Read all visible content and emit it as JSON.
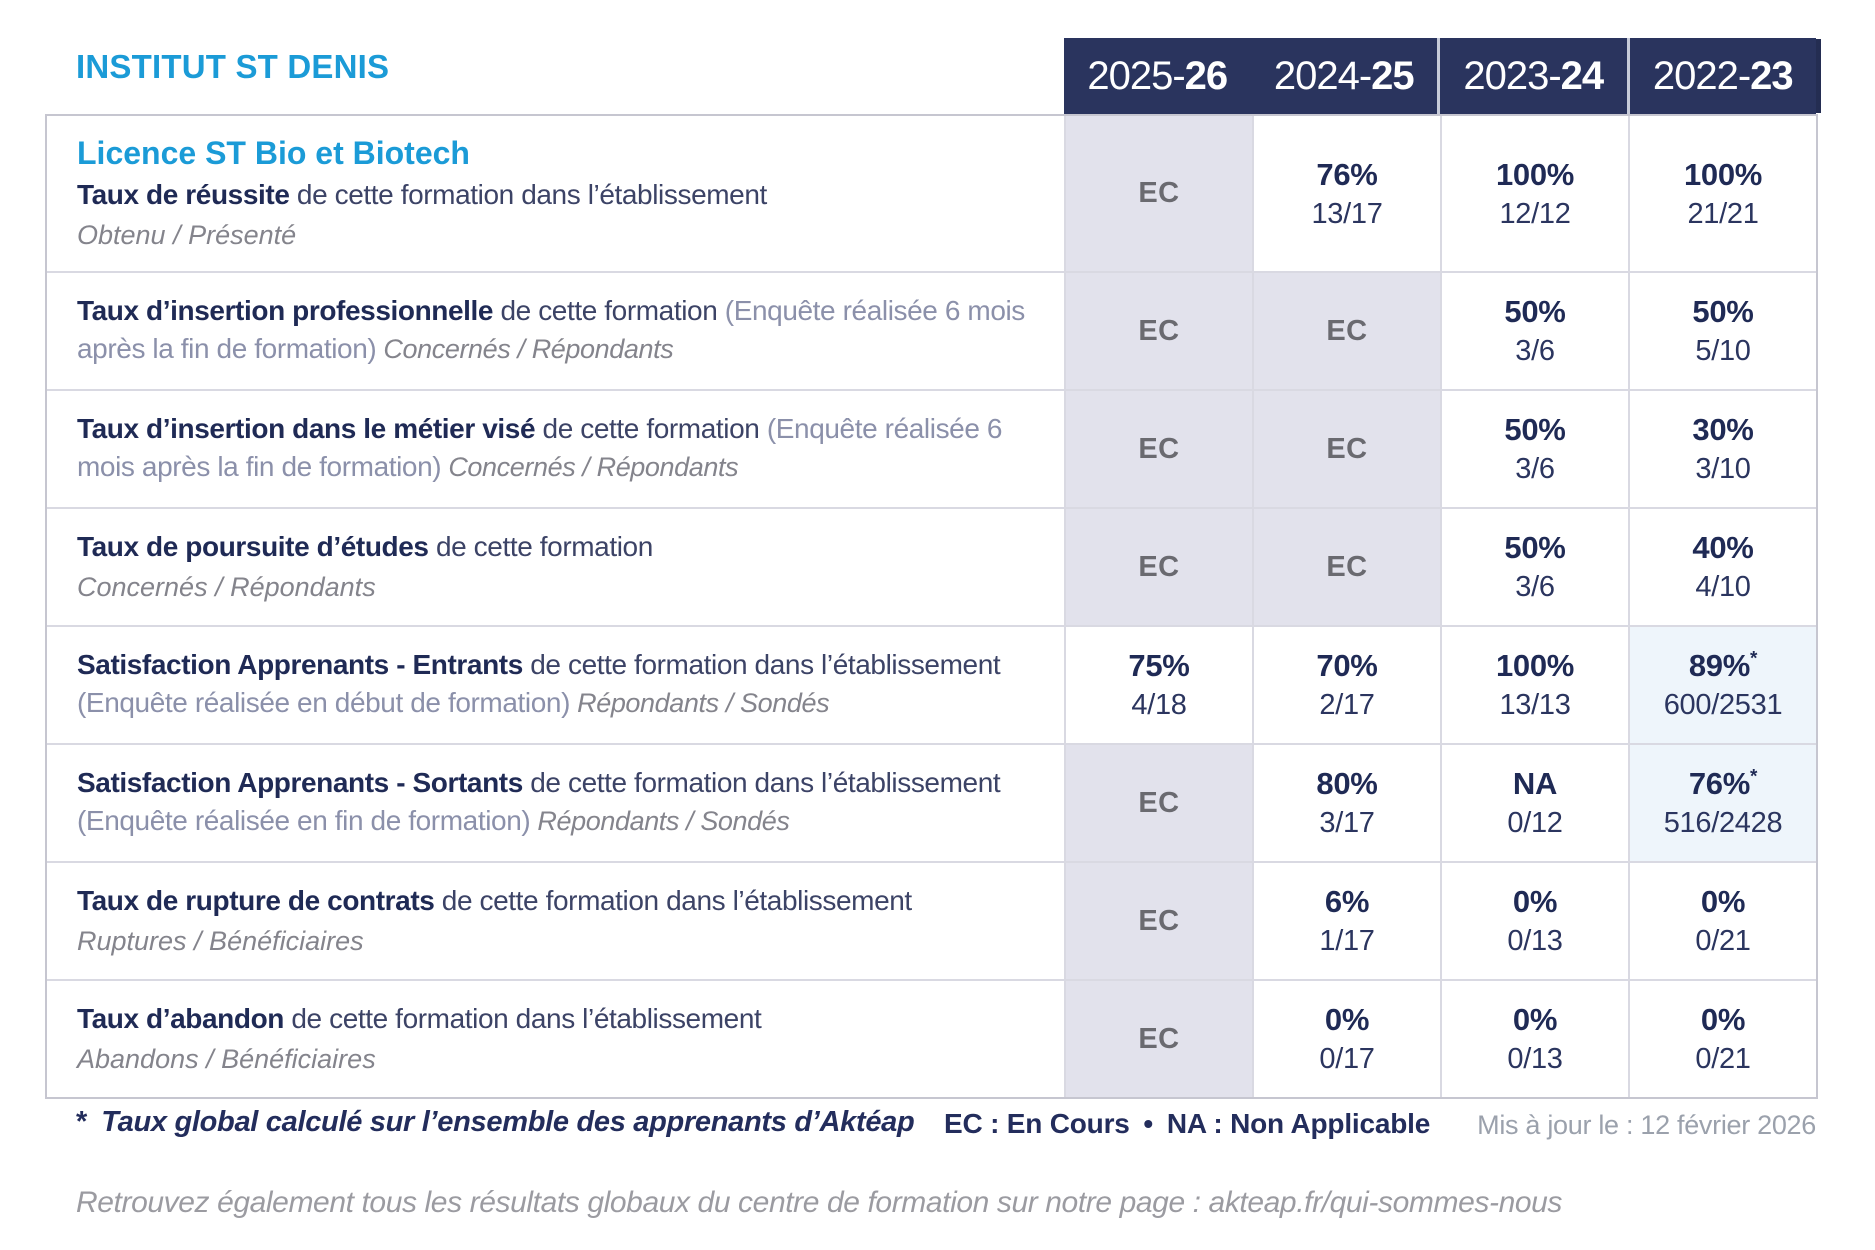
{
  "brand": "INSTITUT ST DENIS",
  "colors": {
    "accent_blue": "#1b9bd7",
    "navy_text": "#1f2a55",
    "header_bg": "#2a345e",
    "ec_cell_bg": "#e2e2ec",
    "star_cell_bg": "#eef5fb"
  },
  "year_columns": [
    {
      "prefix": "2025-",
      "bold": "26"
    },
    {
      "prefix": "2024-",
      "bold": "25"
    },
    {
      "prefix": "2023-",
      "bold": "24"
    },
    {
      "prefix": "2022-",
      "bold": "23"
    }
  ],
  "rows": [
    {
      "program": "Licence ST Bio et Biotech",
      "title": "Taux de réussite",
      "desc": "de cette formation dans l’établissement",
      "paren": "",
      "sub": "Obtenu / Présenté",
      "sub_own_line": true,
      "cells": [
        {
          "type": "ec",
          "main": "EC"
        },
        {
          "type": "value",
          "main": "76%",
          "frac": "13/17"
        },
        {
          "type": "value",
          "main": "100%",
          "frac": "12/12"
        },
        {
          "type": "value",
          "main": "100%",
          "frac": "21/21"
        }
      ]
    },
    {
      "program": "",
      "title": "Taux d’insertion professionnelle",
      "desc": "de cette formation",
      "paren": "(Enquête réalisée 6 mois après la fin de formation)",
      "sub": "Concernés / Répondants",
      "sub_own_line": false,
      "cells": [
        {
          "type": "ec",
          "main": "EC"
        },
        {
          "type": "ec",
          "main": "EC"
        },
        {
          "type": "value",
          "main": "50%",
          "frac": "3/6"
        },
        {
          "type": "value",
          "main": "50%",
          "frac": "5/10"
        }
      ]
    },
    {
      "program": "",
      "title": "Taux d’insertion dans le métier visé",
      "desc": "de cette formation",
      "paren": "(Enquête réalisée 6 mois après la fin de formation)",
      "sub": "Concernés / Répondants",
      "sub_own_line": false,
      "cells": [
        {
          "type": "ec",
          "main": "EC"
        },
        {
          "type": "ec",
          "main": "EC"
        },
        {
          "type": "value",
          "main": "50%",
          "frac": "3/6"
        },
        {
          "type": "value",
          "main": "30%",
          "frac": "3/10"
        }
      ]
    },
    {
      "program": "",
      "title": "Taux de poursuite d’études",
      "desc": "de cette formation",
      "paren": "",
      "sub": "Concernés / Répondants",
      "sub_own_line": true,
      "cells": [
        {
          "type": "ec",
          "main": "EC"
        },
        {
          "type": "ec",
          "main": "EC"
        },
        {
          "type": "value",
          "main": "50%",
          "frac": "3/6"
        },
        {
          "type": "value",
          "main": "40%",
          "frac": "4/10"
        }
      ]
    },
    {
      "program": "",
      "title": "Satisfaction Apprenants - Entrants",
      "desc": "de cette formation dans l’établissement",
      "paren": "(Enquête réalisée en début de formation)",
      "sub": "Répondants / Sondés",
      "sub_own_line": false,
      "cells": [
        {
          "type": "value",
          "main": "75%",
          "frac": "4/18"
        },
        {
          "type": "value",
          "main": "70%",
          "frac": "2/17"
        },
        {
          "type": "value",
          "main": "100%",
          "frac": "13/13"
        },
        {
          "type": "star",
          "main": "89%",
          "frac": "600/2531"
        }
      ]
    },
    {
      "program": "",
      "title": "Satisfaction Apprenants - Sortants",
      "desc": "de cette formation dans l’établissement",
      "paren": "(Enquête réalisée en fin de formation)",
      "sub": "Répondants / Sondés",
      "sub_own_line": false,
      "cells": [
        {
          "type": "ec",
          "main": "EC"
        },
        {
          "type": "value",
          "main": "80%",
          "frac": "3/17"
        },
        {
          "type": "value",
          "main": "NA",
          "frac": "0/12"
        },
        {
          "type": "star",
          "main": "76%",
          "frac": "516/2428"
        }
      ]
    },
    {
      "program": "",
      "title": "Taux de rupture de contrats",
      "desc": "de cette formation dans l’établissement",
      "paren": "",
      "sub": "Ruptures / Bénéficiaires",
      "sub_own_line": true,
      "cells": [
        {
          "type": "ec",
          "main": "EC"
        },
        {
          "type": "value",
          "main": "6%",
          "frac": "1/17"
        },
        {
          "type": "value",
          "main": "0%",
          "frac": "0/13"
        },
        {
          "type": "value",
          "main": "0%",
          "frac": "0/21"
        }
      ]
    },
    {
      "program": "",
      "title": "Taux d’abandon",
      "desc": "de cette formation dans l’établissement",
      "paren": "",
      "sub": "Abandons / Bénéficiaires",
      "sub_own_line": true,
      "cells": [
        {
          "type": "ec",
          "main": "EC"
        },
        {
          "type": "value",
          "main": "0%",
          "frac": "0/17"
        },
        {
          "type": "value",
          "main": "0%",
          "frac": "0/13"
        },
        {
          "type": "value",
          "main": "0%",
          "frac": "0/21"
        }
      ]
    }
  ],
  "footer": {
    "note_marker": "*",
    "note": "Taux global calculé sur l’ensemble des apprenants d’Aktéap",
    "legend": "EC : En Cours • NA : Non Applicable",
    "updated": "Mis à jour le : 12 février 2026",
    "link_line": "Retrouvez également tous les résultats globaux du centre de formation sur notre page : akteap.fr/qui-sommes-nous"
  }
}
